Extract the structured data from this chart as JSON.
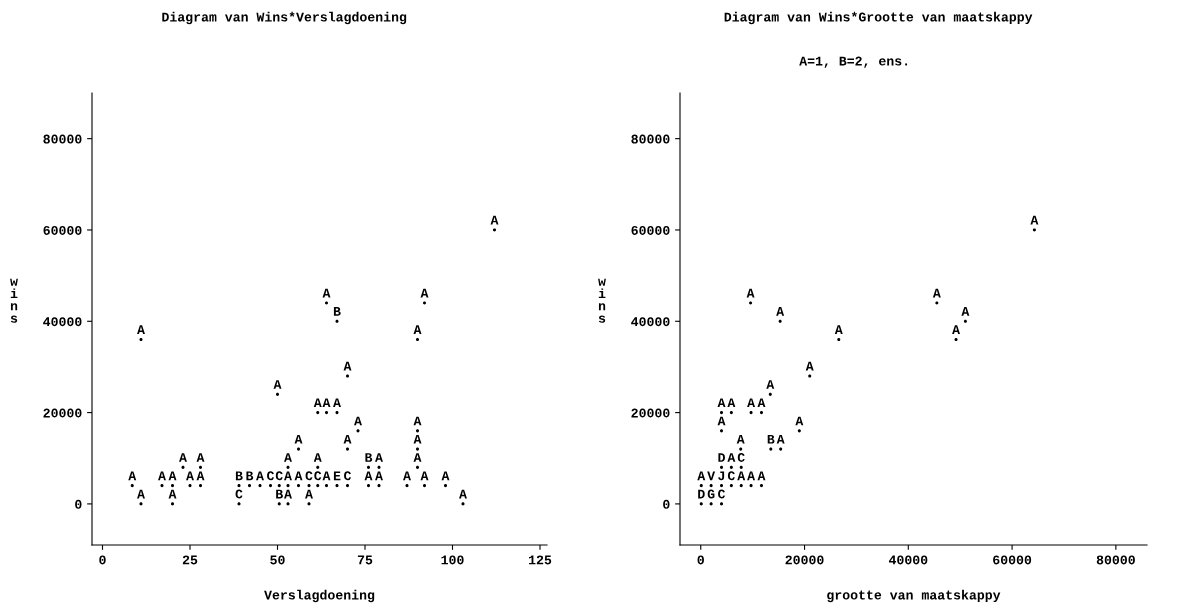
{
  "chart_data": [
    {
      "type": "scatter",
      "title": "Diagram van Wins*Verslagdoening",
      "xlabel": "Verslagdoening",
      "ylabel": "wins",
      "marker": "circle",
      "grid": false,
      "xlim": [
        -3,
        127
      ],
      "xticks": [
        0,
        25,
        50,
        75,
        100,
        125
      ],
      "ylim": [
        -9000,
        90000
      ],
      "yticks": [
        0,
        20000,
        40000,
        60000,
        80000
      ],
      "series": [
        {
          "color": "#000000",
          "x": [
            112,
            64,
            92,
            67,
            11,
            90,
            70,
            50,
            61.5,
            64,
            67,
            73,
            90,
            56,
            70,
            90,
            23,
            28,
            53,
            61.5,
            76,
            79,
            90,
            8.5,
            17,
            20,
            25,
            28,
            39,
            42,
            45,
            48,
            50.5,
            53,
            56,
            59,
            61.5,
            64,
            67,
            70,
            76,
            79,
            87,
            92,
            98,
            11,
            20,
            39,
            50.5,
            53,
            59,
            103
          ],
          "values": [
            60000,
            44000,
            44000,
            40000,
            36000,
            36000,
            28000,
            24000,
            20000,
            20000,
            20000,
            16000,
            16000,
            12000,
            12000,
            12000,
            8000,
            8000,
            8000,
            8000,
            8000,
            8000,
            8000,
            4000,
            4000,
            4000,
            4000,
            4000,
            4000,
            4000,
            4000,
            4000,
            4000,
            4000,
            4000,
            4000,
            4000,
            4000,
            4000,
            4000,
            4000,
            4000,
            4000,
            4000,
            4000,
            0,
            0,
            0,
            0,
            0,
            0,
            0
          ],
          "value_labels": [
            "A",
            "A",
            "A",
            "B",
            "A",
            "A",
            "A",
            "A",
            "A",
            "A",
            "A",
            "A",
            "A",
            "A",
            "A",
            "A",
            "A",
            "A",
            "A",
            "A",
            "B",
            "A",
            "A",
            "A",
            "A",
            "A",
            "A",
            "A",
            "B",
            "B",
            "A",
            "C",
            "C",
            "A",
            "A",
            "C",
            "C",
            "A",
            "E",
            "C",
            "A",
            "A",
            "A",
            "A",
            "A",
            "A",
            "A",
            "C",
            "B",
            "A",
            "A",
            "A"
          ]
        }
      ]
    },
    {
      "type": "scatter",
      "title": "Diagram van Wins*Grootte van maatskappy",
      "subtitle": "A=1, B=2, ens.",
      "xlabel": "grootte van maatskappy",
      "ylabel": "wins",
      "marker": "circle",
      "grid": false,
      "xlim": [
        -4000,
        86000
      ],
      "xticks": [
        0,
        20000,
        40000,
        60000,
        80000
      ],
      "ylim": [
        -9000,
        90000
      ],
      "yticks": [
        0,
        20000,
        40000,
        60000,
        80000
      ],
      "series": [
        {
          "color": "#000000",
          "x": [
            64300,
            9600,
            45500,
            15300,
            51000,
            26600,
            49200,
            21000,
            13400,
            4000,
            5900,
            9700,
            11700,
            4000,
            19000,
            7700,
            13500,
            15400,
            4000,
            5900,
            7800,
            100,
            2000,
            4000,
            5900,
            7800,
            9700,
            11700,
            100,
            2000,
            4000
          ],
          "values": [
            60000,
            44000,
            44000,
            40000,
            40000,
            36000,
            36000,
            28000,
            24000,
            20000,
            20000,
            20000,
            20000,
            16000,
            16000,
            12000,
            12000,
            12000,
            8000,
            8000,
            8000,
            4000,
            4000,
            4000,
            4000,
            4000,
            4000,
            4000,
            0,
            0,
            0
          ],
          "value_labels": [
            "A",
            "A",
            "A",
            "A",
            "A",
            "A",
            "A",
            "A",
            "A",
            "A",
            "A",
            "A",
            "A",
            "A",
            "A",
            "A",
            "B",
            "A",
            "D",
            "A",
            "C",
            "A",
            "V",
            "J",
            "C",
            "A",
            "A",
            "A",
            "D",
            "G",
            "C"
          ]
        }
      ]
    }
  ]
}
